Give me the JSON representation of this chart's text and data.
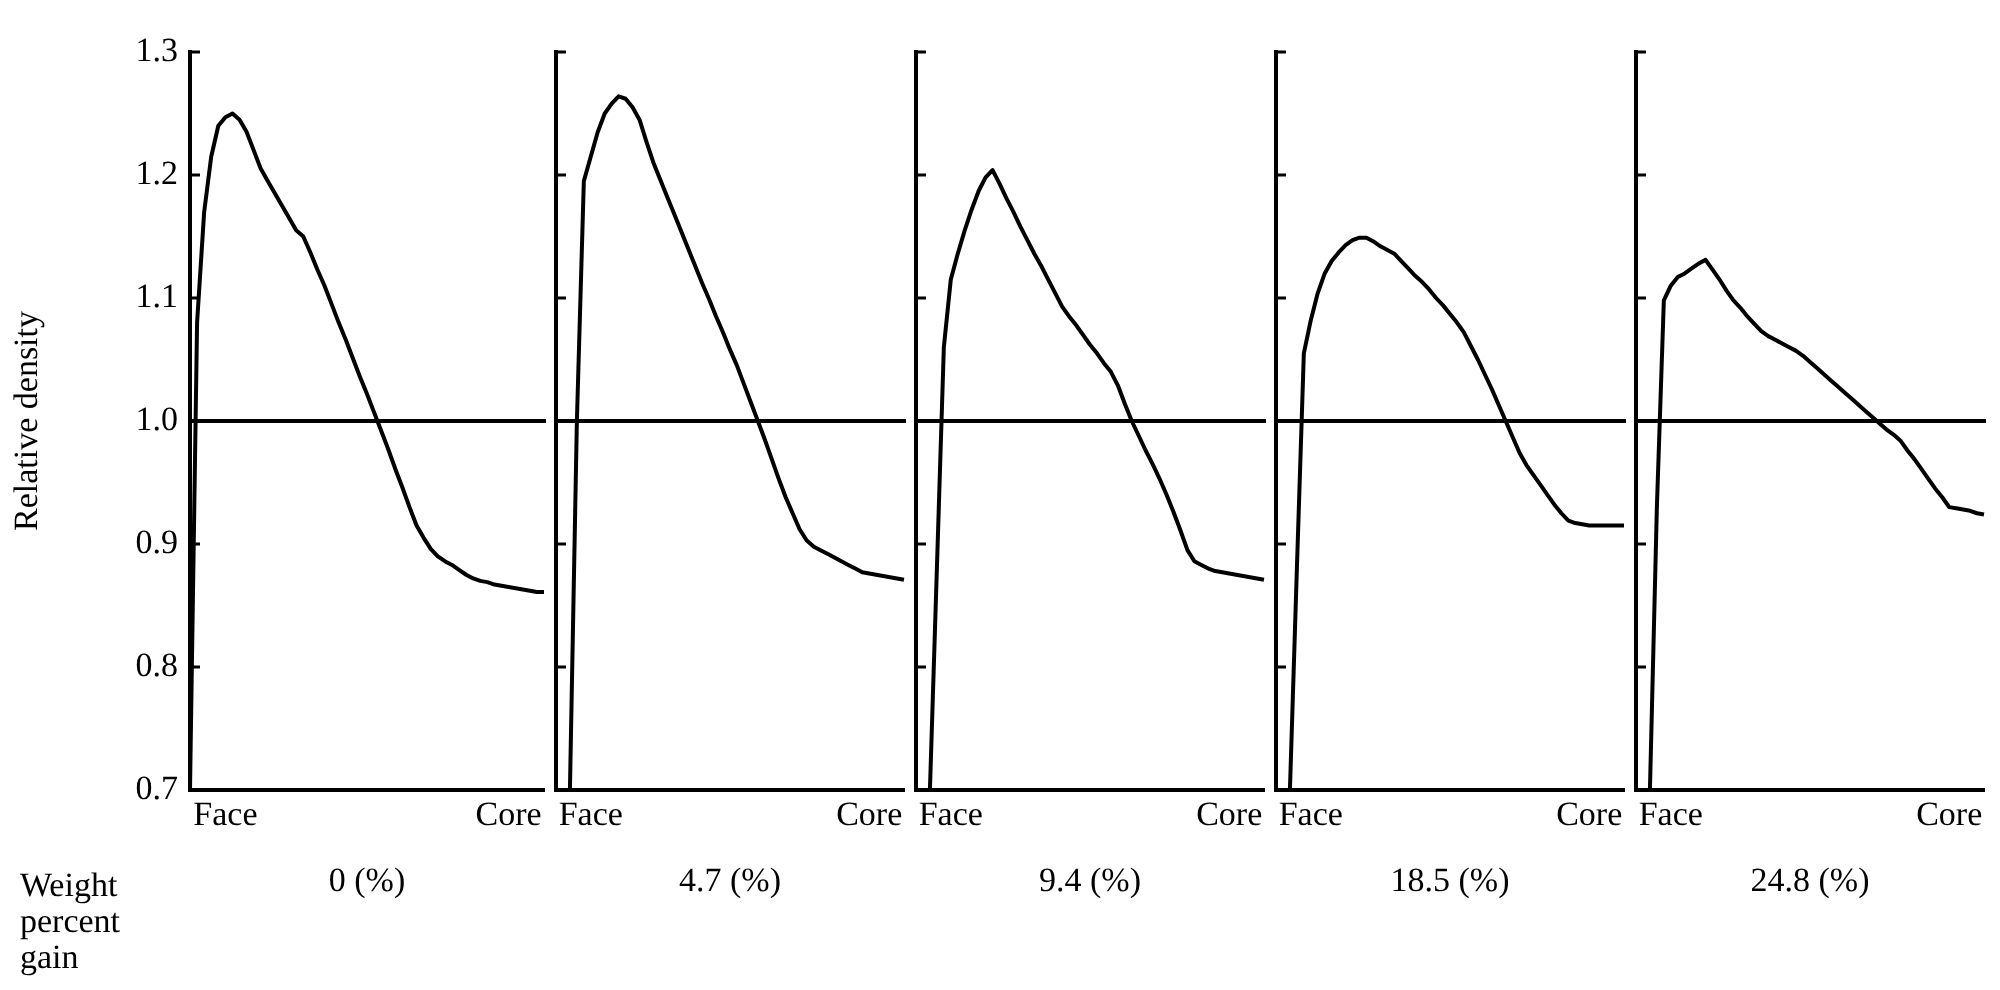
{
  "chart_data": [
    {
      "type": "line",
      "ylabel": "Relative density",
      "xlabel": "0 (%)",
      "annotations": [
        "Weight percent gain"
      ],
      "categories": [
        null,
        null,
        null,
        null,
        null,
        "Face",
        null,
        null,
        null,
        null,
        null,
        null,
        null,
        null,
        null,
        null,
        null,
        null,
        null,
        null,
        null,
        null,
        null,
        null,
        null,
        null,
        null,
        null,
        null,
        null,
        null,
        null,
        null,
        null,
        null,
        null,
        null,
        null,
        null,
        null,
        null,
        null,
        null,
        null,
        null,
        "Core",
        null,
        null,
        null,
        null,
        null
      ],
      "ylim": [
        0.7,
        1.3
      ],
      "yticks": [
        0.7,
        0.8,
        0.9,
        {
          "value": 1,
          "label": "1.0"
        },
        1.1,
        1.2,
        1.3
      ],
      "ref_lines": [
        {
          "axis": "y",
          "value": 1
        }
      ],
      "series": [
        {
          "color": "#000000",
          "values": [
            0.7,
            1.08,
            1.17,
            1.215,
            1.24,
            1.247,
            1.25,
            1.245,
            1.235,
            1.22,
            1.205,
            1.195,
            1.185,
            1.175,
            1.165,
            1.155,
            1.15,
            1.137,
            1.123,
            1.11,
            1.095,
            1.08,
            1.066,
            1.051,
            1.036,
            1.022,
            1.007,
            0.992,
            0.977,
            0.961,
            0.946,
            0.93,
            0.915,
            0.905,
            0.896,
            0.89,
            0.886,
            0.883,
            0.879,
            0.875,
            0.872,
            0.87,
            0.869,
            0.867,
            0.866,
            0.865,
            0.864,
            0.863,
            0.862,
            0.861,
            0.861
          ]
        }
      ]
    },
    {
      "type": "line",
      "xlabel": "4.7 (%)",
      "tick_labels": "x",
      "categories": [
        null,
        null,
        null,
        null,
        null,
        "Face",
        null,
        null,
        null,
        null,
        null,
        null,
        null,
        null,
        null,
        null,
        null,
        null,
        null,
        null,
        null,
        null,
        null,
        null,
        null,
        null,
        null,
        null,
        null,
        null,
        null,
        null,
        null,
        null,
        null,
        null,
        null,
        null,
        null,
        null,
        null,
        null,
        null,
        null,
        null,
        "Core",
        null,
        null,
        null,
        null,
        null
      ],
      "ylim": [
        0.7,
        1.3
      ],
      "yticks": [
        0.7,
        0.8,
        0.9,
        1,
        1.1,
        1.2,
        1.3
      ],
      "ref_lines": [
        {
          "axis": "y",
          "value": 1
        }
      ],
      "series": [
        {
          "color": "#000000",
          "values": [
            null,
            null,
            0.7,
            1.0,
            1.195,
            1.215,
            1.235,
            1.25,
            1.258,
            1.264,
            1.262,
            1.255,
            1.245,
            1.227,
            1.21,
            1.196,
            1.182,
            1.168,
            1.154,
            1.14,
            1.126,
            1.112,
            1.099,
            1.085,
            1.072,
            1.058,
            1.045,
            1.03,
            1.015,
            1.0,
            0.985,
            0.969,
            0.953,
            0.938,
            0.925,
            0.912,
            0.903,
            0.898,
            0.895,
            0.892,
            0.889,
            0.886,
            0.883,
            0.88,
            0.877,
            0.876,
            0.875,
            0.874,
            0.873,
            0.872,
            0.871
          ]
        }
      ]
    },
    {
      "type": "line",
      "xlabel": "9.4 (%)",
      "tick_labels": "x",
      "categories": [
        null,
        null,
        null,
        null,
        null,
        "Face",
        null,
        null,
        null,
        null,
        null,
        null,
        null,
        null,
        null,
        null,
        null,
        null,
        null,
        null,
        null,
        null,
        null,
        null,
        null,
        null,
        null,
        null,
        null,
        null,
        null,
        null,
        null,
        null,
        null,
        null,
        null,
        null,
        null,
        null,
        null,
        null,
        null,
        null,
        null,
        "Core",
        null,
        null,
        null,
        null,
        null
      ],
      "ylim": [
        0.7,
        1.3
      ],
      "yticks": [
        0.7,
        0.8,
        0.9,
        1,
        1.1,
        1.2,
        1.3
      ],
      "ref_lines": [
        {
          "axis": "y",
          "value": 1
        }
      ],
      "series": [
        {
          "color": "#000000",
          "values": [
            null,
            null,
            0.7,
            0.88,
            1.06,
            1.115,
            1.136,
            1.155,
            1.172,
            1.187,
            1.198,
            1.204,
            1.193,
            1.181,
            1.17,
            1.158,
            1.147,
            1.136,
            1.126,
            1.115,
            1.104,
            1.093,
            1.085,
            1.078,
            1.07,
            1.062,
            1.055,
            1.047,
            1.04,
            1.029,
            1.014,
            1.0,
            0.988,
            0.976,
            0.965,
            0.953,
            0.94,
            0.926,
            0.911,
            0.895,
            0.886,
            0.883,
            0.88,
            0.878,
            0.877,
            0.876,
            0.875,
            0.874,
            0.873,
            0.872,
            0.871
          ]
        }
      ]
    },
    {
      "type": "line",
      "xlabel": "18.5 (%)",
      "tick_labels": "x",
      "categories": [
        null,
        null,
        null,
        null,
        null,
        "Face",
        null,
        null,
        null,
        null,
        null,
        null,
        null,
        null,
        null,
        null,
        null,
        null,
        null,
        null,
        null,
        null,
        null,
        null,
        null,
        null,
        null,
        null,
        null,
        null,
        null,
        null,
        null,
        null,
        null,
        null,
        null,
        null,
        null,
        null,
        null,
        null,
        null,
        null,
        null,
        "Core",
        null,
        null,
        null,
        null,
        null
      ],
      "ylim": [
        0.7,
        1.3
      ],
      "yticks": [
        0.7,
        0.8,
        0.9,
        1,
        1.1,
        1.2,
        1.3
      ],
      "ref_lines": [
        {
          "axis": "y",
          "value": 1
        }
      ],
      "series": [
        {
          "color": "#000000",
          "values": [
            null,
            null,
            0.7,
            0.88,
            1.055,
            1.082,
            1.104,
            1.12,
            1.13,
            1.137,
            1.143,
            1.147,
            1.149,
            1.149,
            1.146,
            1.142,
            1.139,
            1.136,
            1.13,
            1.124,
            1.118,
            1.113,
            1.107,
            1.1,
            1.094,
            1.087,
            1.08,
            1.072,
            1.061,
            1.05,
            1.038,
            1.026,
            1.013,
            1.0,
            0.987,
            0.974,
            0.964,
            0.956,
            0.948,
            0.94,
            0.932,
            0.925,
            0.919,
            0.917,
            0.916,
            0.915,
            0.915,
            0.915,
            0.915,
            0.915,
            0.915
          ]
        }
      ]
    },
    {
      "type": "line",
      "xlabel": "24.8 (%)",
      "tick_labels": "x",
      "categories": [
        null,
        null,
        null,
        null,
        null,
        "Face",
        null,
        null,
        null,
        null,
        null,
        null,
        null,
        null,
        null,
        null,
        null,
        null,
        null,
        null,
        null,
        null,
        null,
        null,
        null,
        null,
        null,
        null,
        null,
        null,
        null,
        null,
        null,
        null,
        null,
        null,
        null,
        null,
        null,
        null,
        null,
        null,
        null,
        null,
        null,
        "Core",
        null,
        null,
        null,
        null,
        null
      ],
      "ylim": [
        0.7,
        1.3
      ],
      "yticks": [
        0.7,
        0.8,
        0.9,
        1,
        1.1,
        1.2,
        1.3
      ],
      "ref_lines": [
        {
          "axis": "y",
          "value": 1
        }
      ],
      "series": [
        {
          "color": "#000000",
          "values": [
            null,
            null,
            0.7,
            0.93,
            1.098,
            1.11,
            1.117,
            1.12,
            1.124,
            1.128,
            1.131,
            1.123,
            1.115,
            1.106,
            1.098,
            1.092,
            1.085,
            1.079,
            1.073,
            1.069,
            1.066,
            1.063,
            1.06,
            1.057,
            1.053,
            1.048,
            1.043,
            1.038,
            1.033,
            1.028,
            1.023,
            1.018,
            1.013,
            1.008,
            1.003,
            0.998,
            0.993,
            0.989,
            0.984,
            0.976,
            0.969,
            0.961,
            0.953,
            0.945,
            0.938,
            0.93,
            0.929,
            0.928,
            0.927,
            0.925,
            0.924
          ]
        }
      ]
    }
  ]
}
